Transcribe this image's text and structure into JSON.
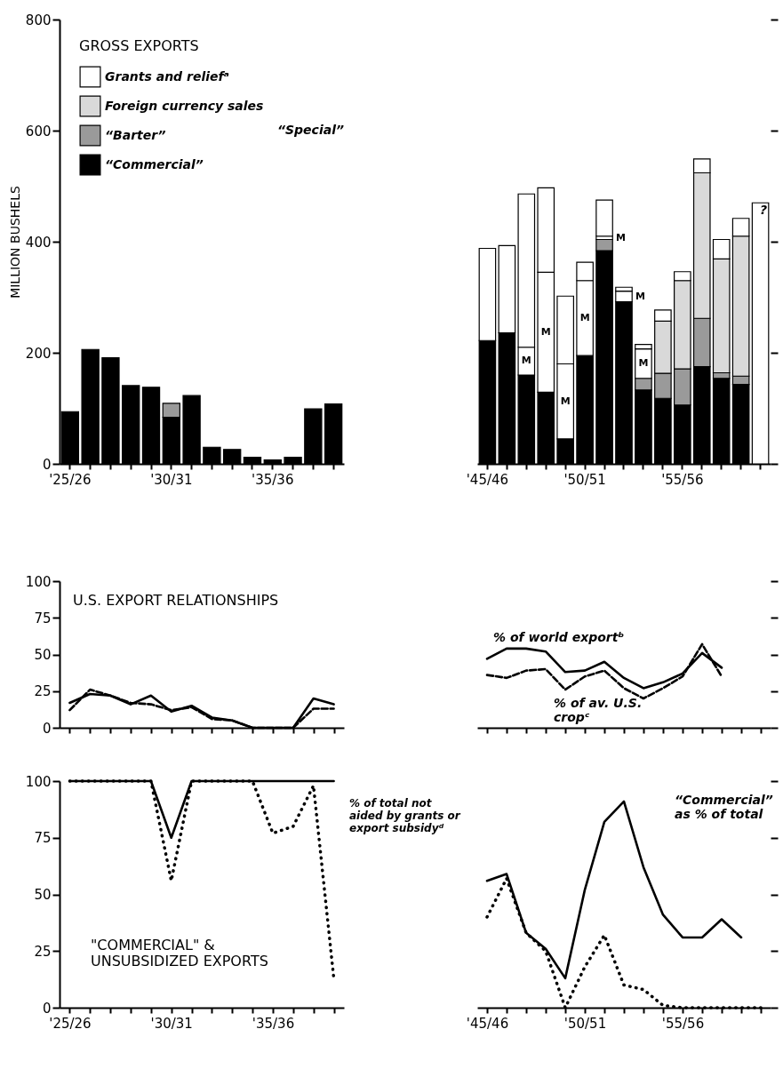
{
  "chart_data": [
    {
      "type": "bar",
      "stacked": true,
      "ylabel": "MILLION BUSHELS",
      "legend_title": "GROSS EXPORTS",
      "legend": "top left",
      "ylim": [
        0,
        800
      ],
      "yticks": [
        0,
        200,
        400,
        600,
        800
      ],
      "annotations": [
        "“Special”"
      ],
      "categories": [
        "'25/26",
        null,
        null,
        null,
        null,
        "'30/31",
        null,
        null,
        null,
        null,
        "'35/36",
        null,
        null,
        null
      ],
      "series": [
        {
          "name": "“Commercial”",
          "color": "#000000",
          "values": [
            94,
            206,
            191,
            141,
            138,
            84,
            123,
            30,
            26,
            12,
            7,
            12,
            99,
            108
          ]
        },
        {
          "name": "“Barter”",
          "color": "#9a9a9a",
          "values": [
            null,
            null,
            null,
            null,
            null,
            25,
            null,
            null,
            null,
            null,
            null,
            null,
            null,
            null
          ]
        },
        {
          "name": "Foreign currency sales",
          "color": "#d9d9d9",
          "values": [
            null,
            null,
            null,
            null,
            null,
            null,
            null,
            null,
            null,
            null,
            null,
            null,
            null,
            null
          ]
        },
        {
          "name": "Grants and reliefᵃ",
          "color": "#ffffff",
          "values": [
            null,
            null,
            null,
            null,
            null,
            null,
            null,
            null,
            null,
            null,
            null,
            null,
            null,
            null
          ]
        }
      ]
    },
    {
      "type": "bar",
      "stacked": true,
      "tick_labels": "x",
      "ylim": [
        0,
        800
      ],
      "yticks": [
        0,
        200,
        400,
        600,
        800
      ],
      "annotations": [
        "?"
      ],
      "categories": [
        "'45/46",
        null,
        null,
        null,
        null,
        "'50/51",
        null,
        null,
        null,
        null,
        "'55/56",
        null,
        null,
        null,
        null
      ],
      "series": [
        {
          "color": "#000000",
          "values": [
            222,
            236,
            160,
            129,
            45,
            195,
            384,
            292,
            133,
            118,
            106,
            175,
            154,
            143,
            null
          ]
        },
        {
          "color": "#9a9a9a",
          "values": [
            null,
            null,
            null,
            null,
            null,
            null,
            20,
            null,
            21,
            45,
            65,
            87,
            10,
            15,
            null
          ]
        },
        {
          "color": "#d9d9d9",
          "values": [
            null,
            null,
            null,
            null,
            null,
            null,
            null,
            null,
            null,
            94,
            159,
            262,
            205,
            252,
            null
          ]
        },
        {
          "color": "#ffffff",
          "values": [
            null,
            null,
            50,
            216,
            135,
            135,
            6,
            19,
            53,
            null,
            null,
            null,
            null,
            null,
            null
          ],
          "value_labels": [
            null,
            null,
            "M",
            "M",
            "M",
            "M",
            "M",
            "M",
            "M",
            null,
            null,
            null,
            null,
            null,
            null
          ]
        },
        {
          "color": "#ffffff",
          "values": [
            166,
            157,
            276,
            152,
            122,
            33,
            65,
            7,
            8,
            20,
            16,
            25,
            35,
            32,
            470
          ]
        }
      ]
    },
    {
      "type": "line",
      "title": "U.S. EXPORT RELATIONSHIPS",
      "tick_labels": "y",
      "ylim": [
        0,
        100
      ],
      "yticks": [
        0,
        25,
        50,
        75,
        100
      ],
      "categories": [
        null,
        null,
        null,
        null,
        null,
        null,
        null,
        null,
        null,
        null,
        null,
        null,
        null,
        null
      ],
      "series": [
        {
          "color": "#000000",
          "line_style": "solid",
          "values": [
            17,
            23,
            22,
            16,
            22,
            11,
            15,
            7,
            5,
            0,
            0,
            0,
            20,
            16
          ]
        },
        {
          "color": "#000000",
          "line_style": "dashed",
          "values": [
            12,
            26,
            22,
            17,
            16,
            12,
            14,
            6,
            5,
            0,
            0,
            0,
            13,
            13
          ]
        }
      ]
    },
    {
      "type": "line",
      "tick_labels": false,
      "ylim": [
        0,
        100
      ],
      "yticks": [
        0,
        25,
        50,
        75,
        100
      ],
      "categories": [
        null,
        null,
        null,
        null,
        null,
        null,
        null,
        null,
        null,
        null,
        null,
        null,
        null,
        null,
        null
      ],
      "series": [
        {
          "name": "% of av. U.S.\ncropᶜ",
          "color": "#000000",
          "line_style": "dashed",
          "values": [
            36,
            34,
            39,
            40,
            26,
            35,
            39,
            27,
            20,
            27,
            35,
            57,
            35,
            null,
            null
          ]
        },
        {
          "name": "% of world exportᵇ",
          "color": "#000000",
          "line_style": "solid",
          "values": [
            47,
            54,
            54,
            52,
            38,
            39,
            45,
            34,
            27,
            31,
            37,
            51,
            41,
            null,
            null
          ]
        }
      ]
    },
    {
      "type": "line",
      "title": "\"COMMERCIAL\" &\nUNSUBSIDIZED EXPORTS",
      "ylim": [
        0,
        100
      ],
      "yticks": [
        0,
        25,
        50,
        75,
        100
      ],
      "categories": [
        "'25/26",
        null,
        null,
        null,
        null,
        "'30/31",
        null,
        null,
        null,
        null,
        "'35/36",
        null,
        null,
        null
      ],
      "series": [
        {
          "color": "#000000",
          "line_style": "solid",
          "values": [
            100,
            100,
            100,
            100,
            100,
            75,
            100,
            100,
            100,
            100,
            100,
            100,
            100,
            100
          ]
        },
        {
          "name": "% of total not\naided by grants or\nexport subsidyᵈ",
          "color": "#000000",
          "line_style": "dotted",
          "values": [
            100,
            100,
            100,
            100,
            100,
            56,
            100,
            100,
            100,
            100,
            77,
            80,
            98,
            13
          ]
        }
      ]
    },
    {
      "type": "line",
      "tick_labels": "x",
      "ylim": [
        0,
        100
      ],
      "yticks": [
        0,
        25,
        50,
        75,
        100
      ],
      "categories": [
        "'45/46",
        null,
        null,
        null,
        null,
        "'50/51",
        null,
        null,
        null,
        null,
        "'55/56",
        null,
        null,
        null,
        null
      ],
      "series": [
        {
          "name": "“Commercial”\nas % of total",
          "color": "#000000",
          "line_style": "solid",
          "values": [
            56,
            59,
            33,
            26,
            13,
            52,
            82,
            91,
            62,
            41,
            31,
            31,
            39,
            31,
            null
          ]
        },
        {
          "color": "#000000",
          "line_style": "dotted",
          "values": [
            40,
            57,
            33,
            25,
            0,
            18,
            32,
            10,
            8,
            1,
            0,
            0,
            0,
            0,
            0
          ]
        }
      ]
    }
  ]
}
